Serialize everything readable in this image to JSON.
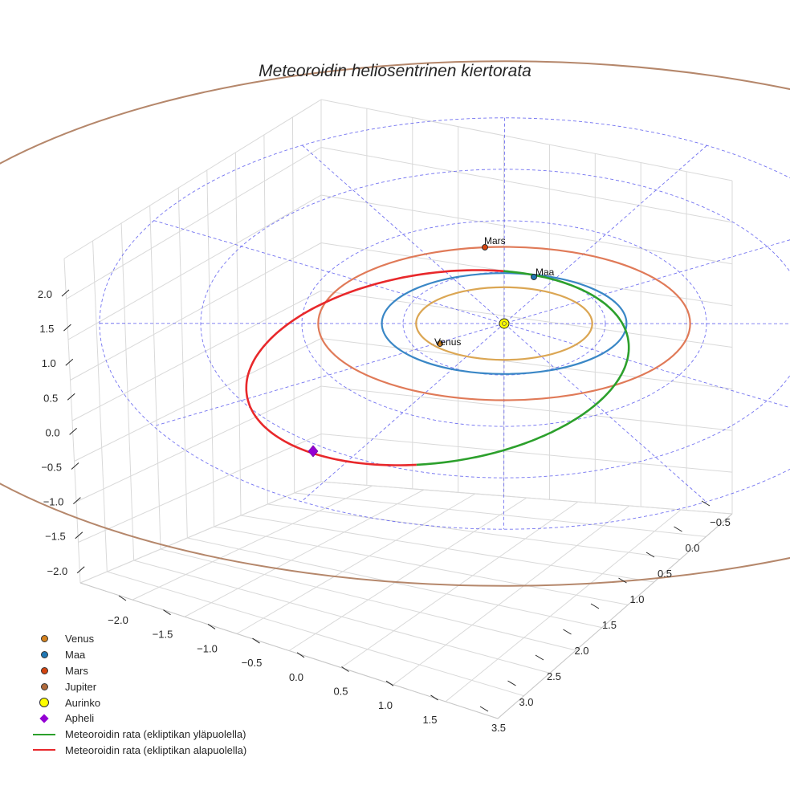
{
  "chart_data": {
    "type": "3d-orbit",
    "title": "Meteoroidin heliosentrinen kiertorata",
    "axes": {
      "x_ticks": [
        "−2.0",
        "−1.5",
        "−1.0",
        "−0.5",
        "0.0",
        "0.5",
        "1.0",
        "1.5"
      ],
      "y_ticks": [
        "−0.5",
        "0.0",
        "0.5",
        "1.0",
        "1.5",
        "2.0",
        "2.5",
        "3.0",
        "3.5"
      ],
      "z_ticks": [
        "2.0",
        "1.5",
        "1.0",
        "0.5",
        "0.0",
        "−0.5",
        "−1.0",
        "−1.5",
        "−2.0"
      ],
      "grid": true
    },
    "planet_orbits_au": [
      {
        "name": "Venus",
        "radius": 0.72
      },
      {
        "name": "Maa",
        "radius": 1.0
      },
      {
        "name": "Mars",
        "radius": 1.52
      },
      {
        "name": "Jupiter",
        "radius": 5.2
      }
    ],
    "ecliptic_rings": 4,
    "ecliptic_spokes": 6,
    "planet_labels": [
      {
        "name": "Venus",
        "text": "Venus"
      },
      {
        "name": "Maa",
        "text": "Maa"
      },
      {
        "name": "Mars",
        "text": "Mars"
      }
    ],
    "meteoroid_orbit": {
      "segments": [
        {
          "name": "above-ecliptic",
          "color": "#2ca02c"
        },
        {
          "name": "below-ecliptic",
          "color": "#e8282b"
        }
      ],
      "aphelion_marker": "Apheli"
    },
    "legend": [
      {
        "label": "Venus",
        "kind": "dot",
        "color": "#d4821e"
      },
      {
        "label": "Maa",
        "kind": "dot",
        "color": "#1f77b4"
      },
      {
        "label": "Mars",
        "kind": "dot",
        "color": "#d4440f"
      },
      {
        "label": "Jupiter",
        "kind": "dot",
        "color": "#b06a3c"
      },
      {
        "label": "Aurinko",
        "kind": "bigdot",
        "color": "#ffff00"
      },
      {
        "label": "Apheli",
        "kind": "diamond",
        "color": "#9400d3"
      },
      {
        "label": "Meteoroidin rata (ekliptikan yläpuolella)",
        "kind": "line",
        "color": "#2ca02c"
      },
      {
        "label": "Meteoroidin rata (ekliptikan alapuolella)",
        "kind": "line",
        "color": "#e8282b"
      }
    ],
    "colors": {
      "venus_orbit": "#dba653",
      "earth_orbit": "#3a87c6",
      "mars_orbit": "#e07a58",
      "jupiter_orbit": "#b5876b",
      "ecliptic_grid": "#5b5bee",
      "sun": "#ffff00"
    }
  }
}
